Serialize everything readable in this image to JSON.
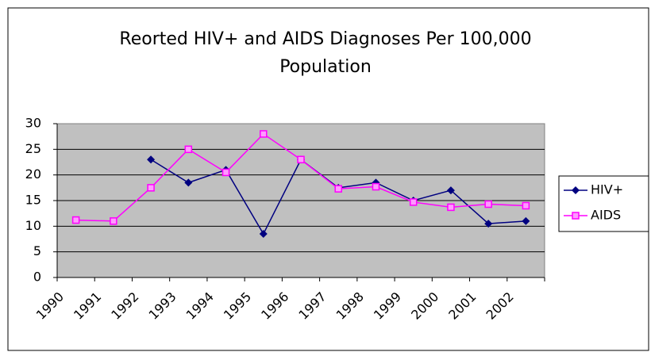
{
  "chart_data": {
    "type": "line",
    "title": "Reorted HIV+ and AIDS Diagnoses Per 100,000 Population",
    "categories": [
      "1990",
      "1991",
      "1992",
      "1993",
      "1994",
      "1995",
      "1996",
      "1997",
      "1998",
      "1999",
      "2000",
      "2001",
      "2002"
    ],
    "series": [
      {
        "name": "HIV+",
        "color": "#000080",
        "marker": "diamond",
        "values": [
          null,
          null,
          23,
          18.5,
          21,
          8.5,
          23,
          17.5,
          18.5,
          15,
          17,
          10.5,
          11
        ]
      },
      {
        "name": "AIDS",
        "color": "#ff00ff",
        "marker": "square",
        "values": [
          11.2,
          11,
          17.5,
          25,
          20.5,
          28,
          23,
          17.3,
          17.7,
          14.7,
          13.7,
          14.3,
          14
        ]
      }
    ],
    "ylim": [
      0,
      30
    ],
    "yticks": [
      0,
      5,
      10,
      15,
      20,
      25,
      30
    ],
    "grid": true,
    "legend": "right"
  }
}
